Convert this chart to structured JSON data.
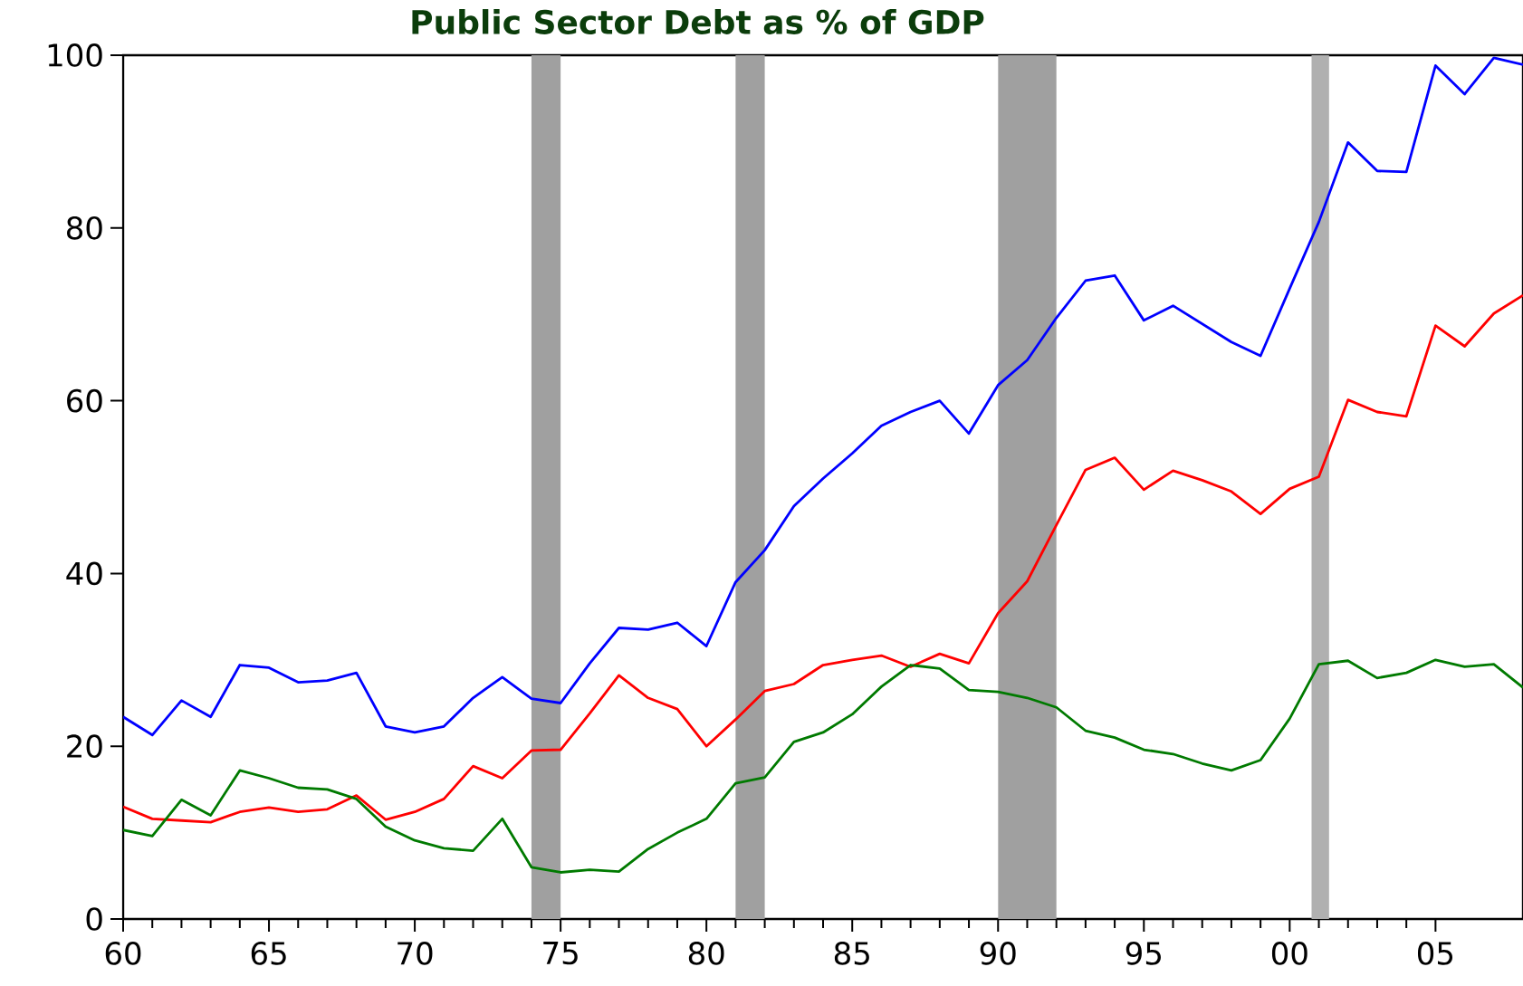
{
  "chart_data": {
    "type": "line",
    "title": "Public Sector Debt as % of GDP",
    "x": [
      1960,
      1961,
      1962,
      1963,
      1964,
      1965,
      1966,
      1967,
      1968,
      1969,
      1970,
      1971,
      1972,
      1973,
      1974,
      1975,
      1976,
      1977,
      1978,
      1979,
      1980,
      1981,
      1982,
      1983,
      1984,
      1985,
      1986,
      1987,
      1988,
      1989,
      1990,
      1991,
      1992,
      1993,
      1994,
      1995,
      1996,
      1997,
      1998,
      1999,
      2000,
      2001,
      2002,
      2003,
      2004,
      2005,
      2006,
      2007,
      2008
    ],
    "series": [
      {
        "color": "#0000ff",
        "values": [
          23.4,
          21.3,
          25.3,
          23.4,
          29.4,
          29.1,
          27.4,
          27.6,
          28.5,
          22.3,
          21.6,
          22.3,
          25.6,
          28.0,
          25.5,
          25.0,
          29.6,
          33.7,
          33.5,
          34.3,
          31.6,
          39.0,
          42.7,
          47.8,
          51.0,
          53.9,
          57.1,
          58.7,
          60.0,
          56.2,
          61.8,
          64.7,
          69.6,
          73.9,
          74.5,
          69.3,
          71.0,
          68.9,
          66.8,
          65.2,
          73.0,
          80.7,
          89.9,
          86.6,
          86.5,
          98.8,
          95.5,
          99.7,
          98.9
        ]
      },
      {
        "color": "#ff0000",
        "values": [
          13.0,
          11.6,
          11.4,
          11.2,
          12.4,
          12.9,
          12.4,
          12.7,
          14.3,
          11.5,
          12.4,
          13.9,
          17.7,
          16.3,
          19.5,
          19.6,
          23.8,
          28.2,
          25.6,
          24.3,
          20.0,
          23.1,
          26.4,
          27.2,
          29.4,
          30.0,
          30.5,
          29.2,
          30.7,
          29.6,
          35.4,
          39.1,
          45.6,
          52.0,
          53.4,
          49.7,
          51.9,
          50.8,
          49.5,
          46.9,
          49.8,
          51.2,
          60.1,
          58.7,
          58.2,
          68.7,
          66.3,
          70.1,
          72.2
        ]
      },
      {
        "color": "#007a00",
        "values": [
          10.3,
          9.6,
          13.8,
          12.0,
          17.2,
          16.3,
          15.2,
          15.0,
          13.9,
          10.7,
          9.1,
          8.2,
          7.9,
          11.6,
          6.0,
          5.4,
          5.7,
          5.5,
          8.1,
          10.0,
          11.6,
          15.7,
          16.4,
          20.5,
          21.6,
          23.7,
          26.9,
          29.4,
          29.0,
          26.5,
          26.3,
          25.6,
          24.5,
          21.8,
          21.0,
          19.6,
          19.1,
          18.0,
          17.2,
          18.4,
          23.2,
          29.5,
          29.9,
          27.9,
          28.5,
          30.0,
          29.2,
          29.5,
          26.8
        ]
      }
    ],
    "xlim": [
      1960,
      2008
    ],
    "ylim": [
      0,
      100
    ],
    "xticks": [
      {
        "value": 1960,
        "label": "60"
      },
      {
        "value": 1965,
        "label": "65"
      },
      {
        "value": 1970,
        "label": "70"
      },
      {
        "value": 1975,
        "label": "75"
      },
      {
        "value": 1980,
        "label": "80"
      },
      {
        "value": 1985,
        "label": "85"
      },
      {
        "value": 1990,
        "label": "90"
      },
      {
        "value": 1995,
        "label": "95"
      },
      {
        "value": 2000,
        "label": "00"
      },
      {
        "value": 2005,
        "label": "05"
      }
    ],
    "yticks": [
      0,
      20,
      40,
      60,
      80,
      100
    ],
    "bands": [
      {
        "axis": "x",
        "from": 1974,
        "to": 1975,
        "color": "#a0a0a0"
      },
      {
        "axis": "x",
        "from": 1981,
        "to": 1982,
        "color": "#a0a0a0"
      },
      {
        "axis": "x",
        "from": 1990,
        "to": 1992,
        "color": "#a0a0a0"
      },
      {
        "axis": "x",
        "from": 2000.75,
        "to": 2001.35,
        "color": "#b0b0b0"
      }
    ],
    "line_style": "solid",
    "marker": "none"
  }
}
